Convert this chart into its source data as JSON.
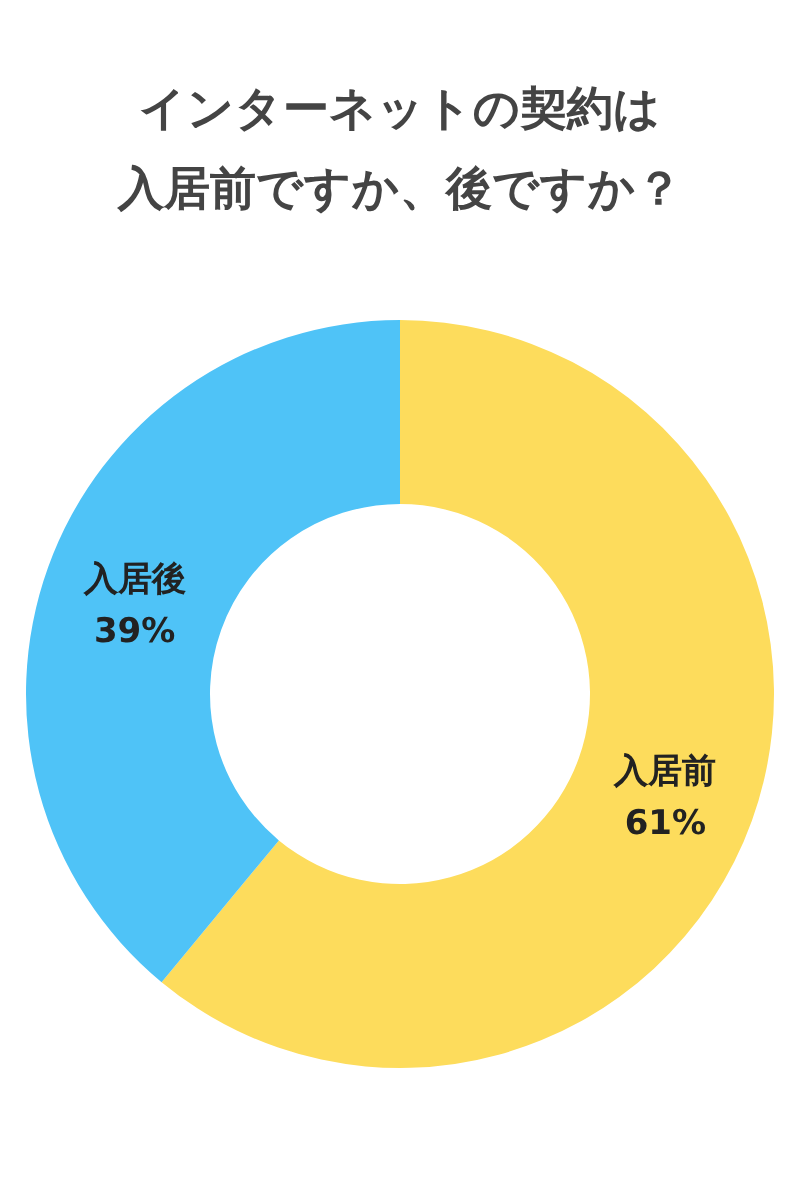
{
  "chart_data": {
    "type": "donut",
    "title": "インターネットの契約は入居前ですか、後ですか？",
    "categories": [
      "入居前",
      "入居後"
    ],
    "values": [
      61,
      39
    ],
    "colors": [
      "#fddc5c",
      "#4fc3f7"
    ],
    "value_labels": [
      "61%",
      "39%"
    ],
    "legend": false
  }
}
